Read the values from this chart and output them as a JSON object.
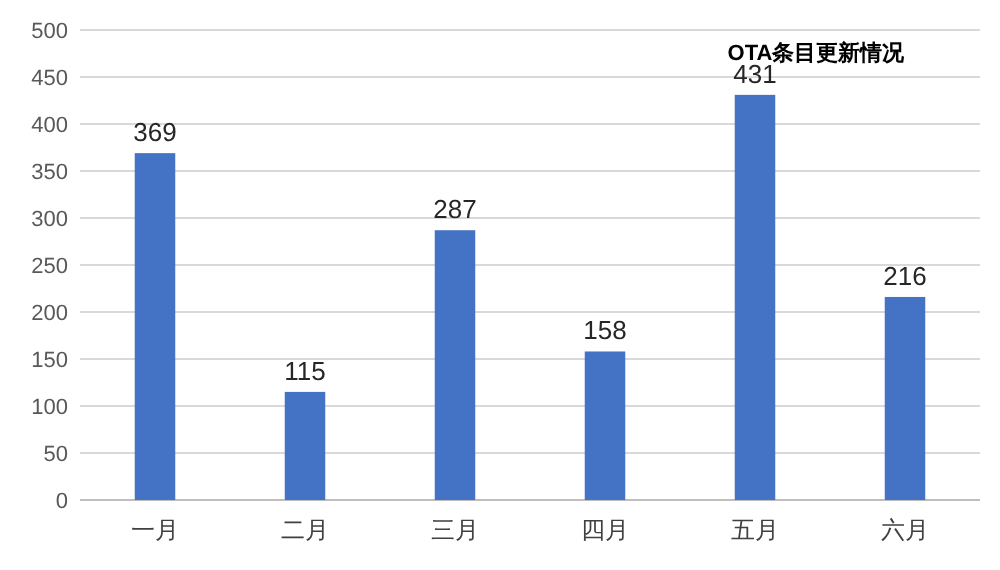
{
  "chart_data": {
    "type": "bar",
    "title": "OTA条目更新情况",
    "categories": [
      "一月",
      "二月",
      "三月",
      "四月",
      "五月",
      "六月"
    ],
    "values": [
      369,
      115,
      287,
      158,
      431,
      216
    ],
    "color": "#4472c4",
    "ylim": [
      0,
      500
    ],
    "yticks": [
      0,
      50,
      100,
      150,
      200,
      250,
      300,
      350,
      400,
      450,
      500
    ],
    "grid": "y",
    "data_labels": true
  }
}
